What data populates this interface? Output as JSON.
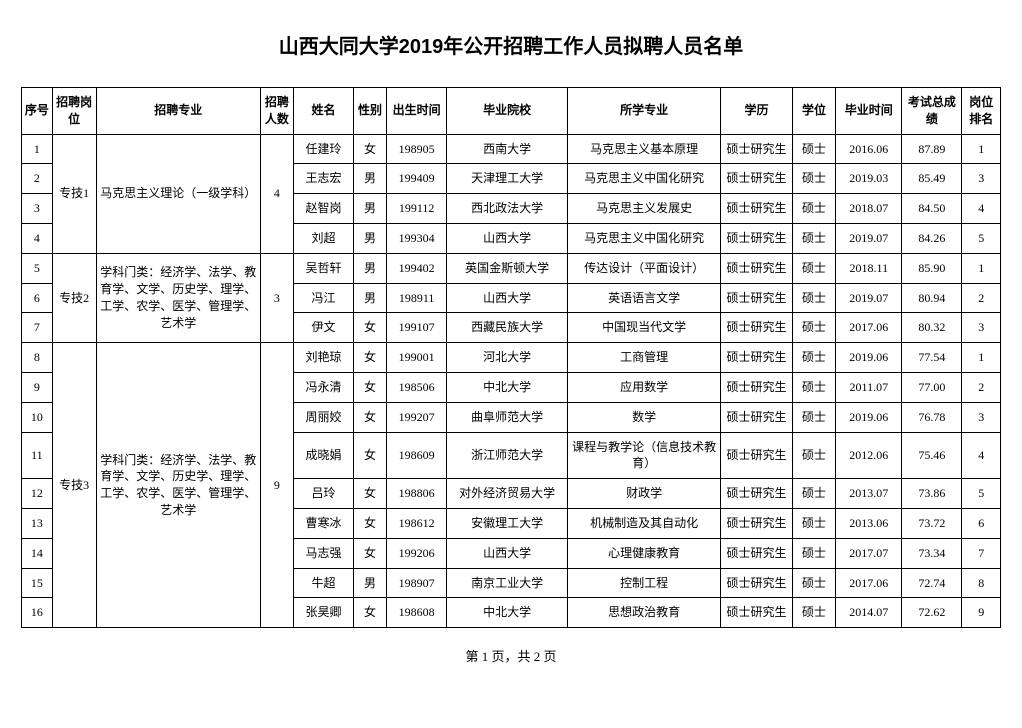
{
  "title": "山西大同大学2019年公开招聘工作人员拟聘人员名单",
  "columns": [
    "序号",
    "招聘岗位",
    "招聘专业",
    "招聘人数",
    "姓名",
    "性别",
    "出生时间",
    "毕业院校",
    "所学专业",
    "学历",
    "学位",
    "毕业时间",
    "考试总成绩",
    "岗位排名"
  ],
  "groups": [
    {
      "position": "专技1",
      "specialty": "马克思主义理论（一级学科）",
      "count": "4",
      "rows": [
        {
          "seq": "1",
          "name": "任建玲",
          "sex": "女",
          "birth": "198905",
          "school": "西南大学",
          "major": "马克思主义基本原理",
          "edu": "硕士研究生",
          "deg": "硕士",
          "grad": "2016.06",
          "score": "87.89",
          "rank": "1"
        },
        {
          "seq": "2",
          "name": "王志宏",
          "sex": "男",
          "birth": "199409",
          "school": "天津理工大学",
          "major": "马克思主义中国化研究",
          "edu": "硕士研究生",
          "deg": "硕士",
          "grad": "2019.03",
          "score": "85.49",
          "rank": "3"
        },
        {
          "seq": "3",
          "name": "赵智岗",
          "sex": "男",
          "birth": "199112",
          "school": "西北政法大学",
          "major": "马克思主义发展史",
          "edu": "硕士研究生",
          "deg": "硕士",
          "grad": "2018.07",
          "score": "84.50",
          "rank": "4"
        },
        {
          "seq": "4",
          "name": "刘超",
          "sex": "男",
          "birth": "199304",
          "school": "山西大学",
          "major": "马克思主义中国化研究",
          "edu": "硕士研究生",
          "deg": "硕士",
          "grad": "2019.07",
          "score": "84.26",
          "rank": "5"
        }
      ]
    },
    {
      "position": "专技2",
      "specialty": "学科门类：经济学、法学、教育学、文学、历史学、理学、工学、农学、医学、管理学、艺术学",
      "count": "3",
      "rows": [
        {
          "seq": "5",
          "name": "吴哲轩",
          "sex": "男",
          "birth": "199402",
          "school": "英国金斯顿大学",
          "major": "传达设计（平面设计）",
          "edu": "硕士研究生",
          "deg": "硕士",
          "grad": "2018.11",
          "score": "85.90",
          "rank": "1"
        },
        {
          "seq": "6",
          "name": "冯江",
          "sex": "男",
          "birth": "198911",
          "school": "山西大学",
          "major": "英语语言文学",
          "edu": "硕士研究生",
          "deg": "硕士",
          "grad": "2019.07",
          "score": "80.94",
          "rank": "2"
        },
        {
          "seq": "7",
          "name": "伊文",
          "sex": "女",
          "birth": "199107",
          "school": "西藏民族大学",
          "major": "中国现当代文学",
          "edu": "硕士研究生",
          "deg": "硕士",
          "grad": "2017.06",
          "score": "80.32",
          "rank": "3"
        }
      ]
    },
    {
      "position": "专技3",
      "specialty": "学科门类：经济学、法学、教育学、文学、历史学、理学、工学、农学、医学、管理学、艺术学",
      "count": "9",
      "rows": [
        {
          "seq": "8",
          "name": "刘艳琼",
          "sex": "女",
          "birth": "199001",
          "school": "河北大学",
          "major": "工商管理",
          "edu": "硕士研究生",
          "deg": "硕士",
          "grad": "2019.06",
          "score": "77.54",
          "rank": "1"
        },
        {
          "seq": "9",
          "name": "冯永清",
          "sex": "女",
          "birth": "198506",
          "school": "中北大学",
          "major": "应用数学",
          "edu": "硕士研究生",
          "deg": "硕士",
          "grad": "2011.07",
          "score": "77.00",
          "rank": "2"
        },
        {
          "seq": "10",
          "name": "周丽姣",
          "sex": "女",
          "birth": "199207",
          "school": "曲阜师范大学",
          "major": "数学",
          "edu": "硕士研究生",
          "deg": "硕士",
          "grad": "2019.06",
          "score": "76.78",
          "rank": "3"
        },
        {
          "seq": "11",
          "name": "成晓娟",
          "sex": "女",
          "birth": "198609",
          "school": "浙江师范大学",
          "major": "课程与教学论（信息技术教育）",
          "edu": "硕士研究生",
          "deg": "硕士",
          "grad": "2012.06",
          "score": "75.46",
          "rank": "4"
        },
        {
          "seq": "12",
          "name": "吕玲",
          "sex": "女",
          "birth": "198806",
          "school": "对外经济贸易大学",
          "major": "财政学",
          "edu": "硕士研究生",
          "deg": "硕士",
          "grad": "2013.07",
          "score": "73.86",
          "rank": "5"
        },
        {
          "seq": "13",
          "name": "曹寒冰",
          "sex": "女",
          "birth": "198612",
          "school": "安徽理工大学",
          "major": "机械制造及其自动化",
          "edu": "硕士研究生",
          "deg": "硕士",
          "grad": "2013.06",
          "score": "73.72",
          "rank": "6"
        },
        {
          "seq": "14",
          "name": "马志强",
          "sex": "女",
          "birth": "199206",
          "school": "山西大学",
          "major": "心理健康教育",
          "edu": "硕士研究生",
          "deg": "硕士",
          "grad": "2017.07",
          "score": "73.34",
          "rank": "7"
        },
        {
          "seq": "15",
          "name": "牛超",
          "sex": "男",
          "birth": "198907",
          "school": "南京工业大学",
          "major": "控制工程",
          "edu": "硕士研究生",
          "deg": "硕士",
          "grad": "2017.06",
          "score": "72.74",
          "rank": "8"
        },
        {
          "seq": "16",
          "name": "张昊卿",
          "sex": "女",
          "birth": "198608",
          "school": "中北大学",
          "major": "思想政治教育",
          "edu": "硕士研究生",
          "deg": "硕士",
          "grad": "2014.07",
          "score": "72.62",
          "rank": "9"
        }
      ]
    }
  ],
  "footer": "第 1 页，共 2 页",
  "style": {
    "title_fontsize": 20,
    "cell_fontsize": 12,
    "border_color": "#000000",
    "background_color": "#ffffff",
    "text_color": "#000000"
  }
}
